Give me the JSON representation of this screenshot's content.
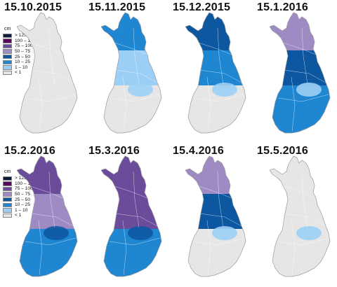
{
  "legend": {
    "unit": "cm",
    "classes": [
      {
        "label": "> 125",
        "color": "#0d1a3c"
      },
      {
        "label": "100 – 125",
        "color": "#5a0a5e"
      },
      {
        "label": "75 – 100",
        "color": "#6b4c9a"
      },
      {
        "label": "50 – 75",
        "color": "#9f8bc4"
      },
      {
        "label": "25 – 50",
        "color": "#0d57a0"
      },
      {
        "label": "10 – 25",
        "color": "#1f86d2"
      },
      {
        "label": "1 – 10",
        "color": "#9ccff5"
      },
      {
        "label": "< 1",
        "color": "#e6e6e6"
      }
    ]
  },
  "panels": [
    {
      "date": "15.10.2015",
      "north": "#e6e6e6",
      "mid": "#e6e6e6",
      "south": "#e6e6e6",
      "lake": "#e6e6e6"
    },
    {
      "date": "15.11.2015",
      "north": "#1f86d2",
      "mid": "#9ccff5",
      "south": "#e6e6e6",
      "lake": "#9ccff5"
    },
    {
      "date": "15.12.2015",
      "north": "#0d57a0",
      "mid": "#1f86d2",
      "south": "#e6e6e6",
      "lake": "#9ccff5"
    },
    {
      "date": "15.1.2016",
      "north": "#9f8bc4",
      "mid": "#0d57a0",
      "south": "#1f86d2",
      "lake": "#9ccff5"
    },
    {
      "date": "15.2.2016",
      "north": "#6b4c9a",
      "mid": "#9f8bc4",
      "south": "#1f86d2",
      "lake": "#0d57a0"
    },
    {
      "date": "15.3.2016",
      "north": "#6b4c9a",
      "mid": "#6b4c9a",
      "south": "#1f86d2",
      "lake": "#0d57a0"
    },
    {
      "date": "15.4.2016",
      "north": "#9f8bc4",
      "mid": "#0d57a0",
      "south": "#e6e6e6",
      "lake": "#9ccff5"
    },
    {
      "date": "15.5.2016",
      "north": "#e6e6e6",
      "mid": "#e6e6e6",
      "south": "#e6e6e6",
      "lake": "#9ccff5"
    }
  ]
}
